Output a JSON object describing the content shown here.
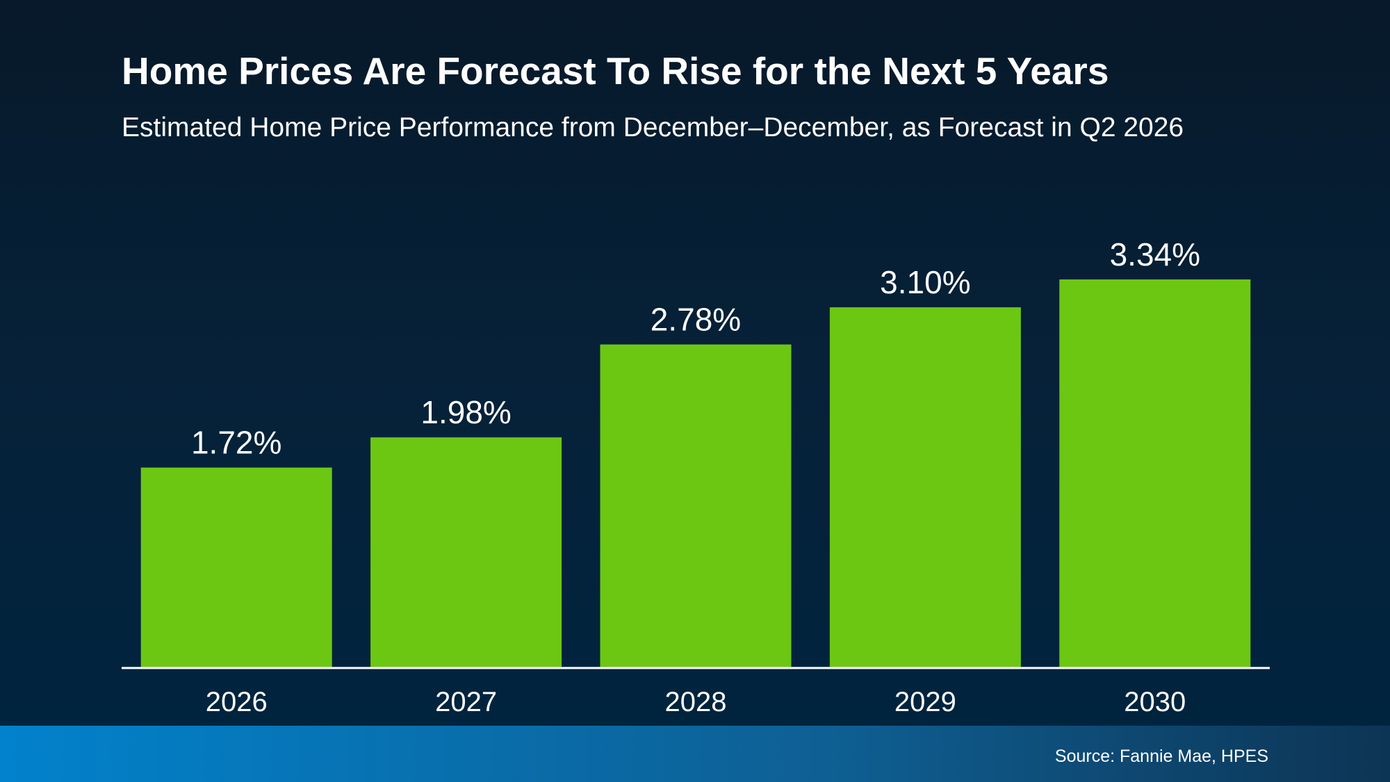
{
  "colors": {
    "bar": "#6cc713",
    "axis": "#ffffff",
    "text": "#ffffff"
  },
  "chart_data": {
    "type": "bar",
    "title": "Home Prices Are Forecast To Rise for the Next 5 Years",
    "subtitle": "Estimated Home Price Performance from December–December, as Forecast in Q2 2026",
    "categories": [
      "2026",
      "2027",
      "2028",
      "2029",
      "2030"
    ],
    "values": [
      1.72,
      1.98,
      2.78,
      3.1,
      3.34
    ],
    "data_labels": [
      "1.72%",
      "1.98%",
      "2.78%",
      "3.10%",
      "3.34%"
    ],
    "xlabel": "",
    "ylabel": "",
    "ylim": [
      0,
      3.34
    ],
    "grid": false,
    "legend": "none"
  },
  "footer": {
    "source": "Source: Fannie Mae, HPES"
  }
}
